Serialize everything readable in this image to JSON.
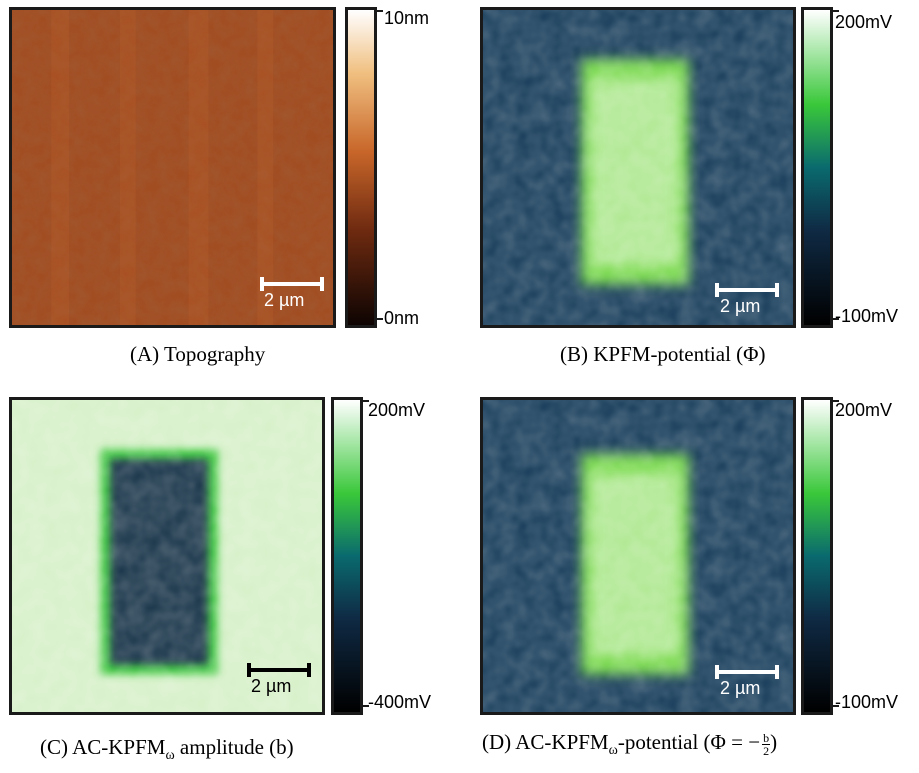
{
  "panels": {
    "a": {
      "caption": "(A) Topography",
      "cb_top": "10nm",
      "cb_bottom": "0nm",
      "scale": "2 µm"
    },
    "b": {
      "caption": "(B) KPFM-potential (Φ)",
      "cb_top": "200mV",
      "cb_bottom": "-100mV",
      "scale": "2 µm"
    },
    "c": {
      "caption_main": "(C) AC-KPFM",
      "caption_sub": "ω",
      "caption_rest": " amplitude (b)",
      "cb_top": "200mV",
      "cb_bottom": "-400mV",
      "scale": "2 µm"
    },
    "d": {
      "caption_main": "(D) AC-KPFM",
      "caption_sub": "ω",
      "caption_rest": "-potential (Φ = −",
      "frac_num": "b",
      "frac_den": "2",
      "caption_end": ")",
      "cb_top": "200mV",
      "cb_bottom": "-100mV",
      "scale": "2 µm"
    }
  },
  "colors": {
    "topography_base": "#a24a1f",
    "kpfm_background": "#143a58",
    "kpfm_rect": "#76d84a",
    "amplitude_background": "#d6f0c8",
    "amplitude_rect": "#123046"
  }
}
